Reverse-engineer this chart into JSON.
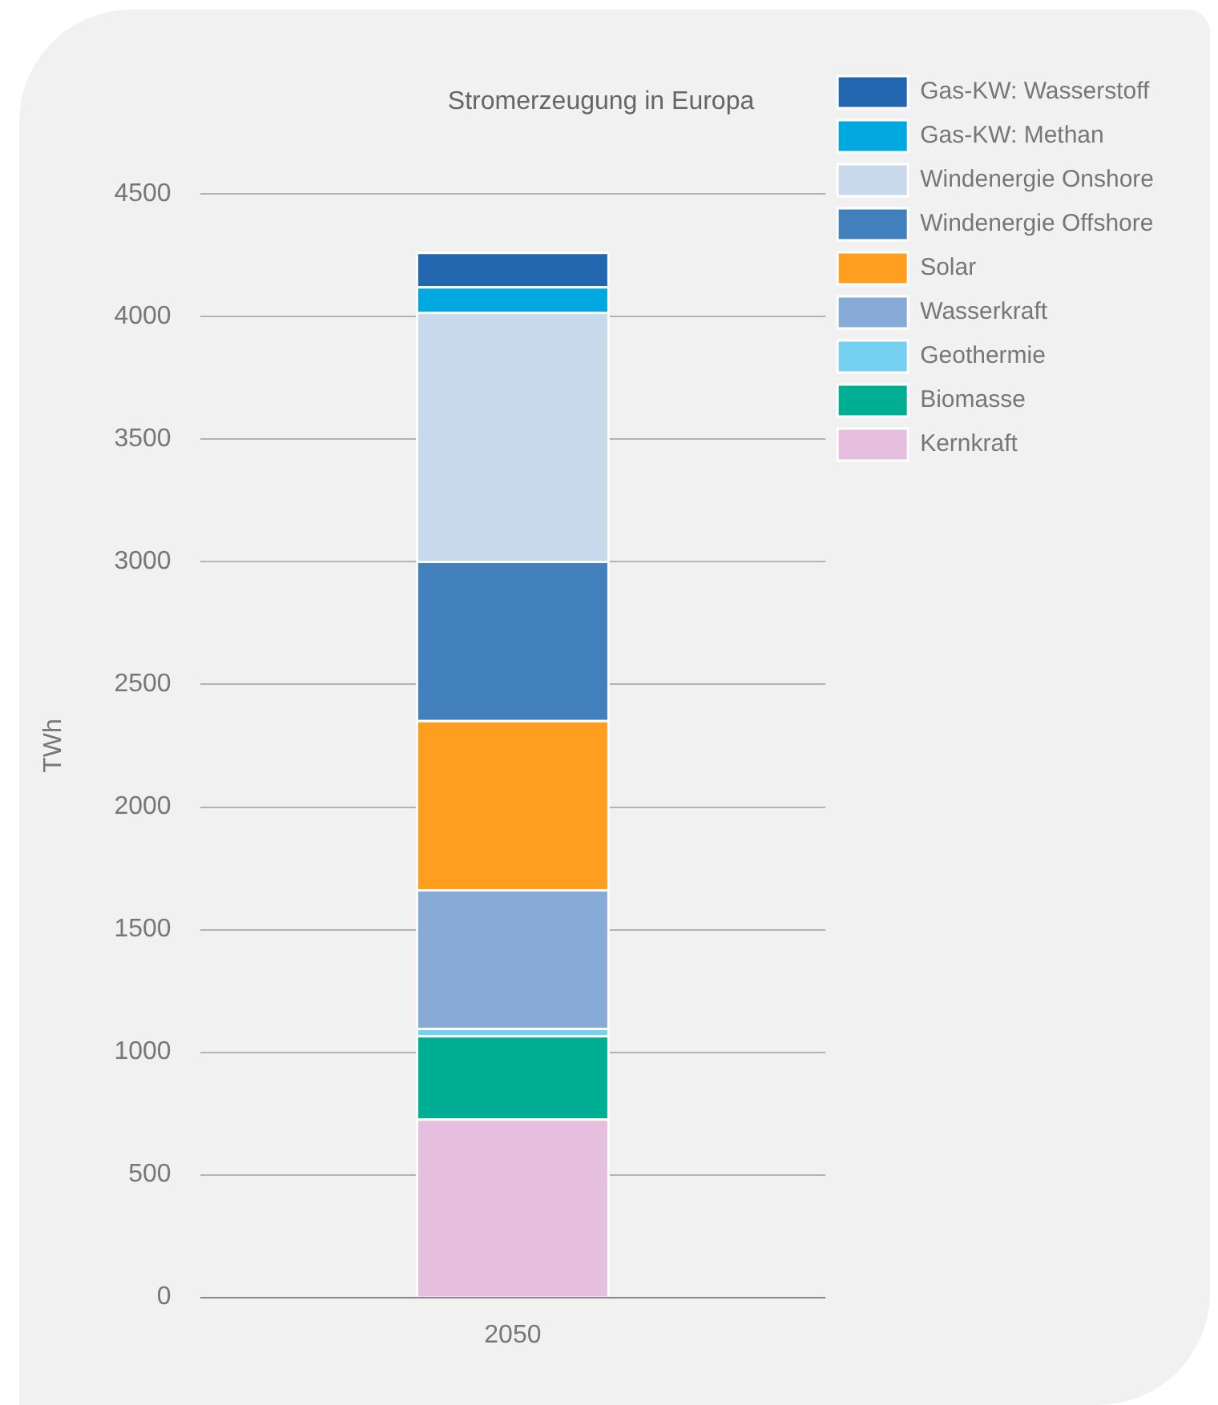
{
  "chart_data": {
    "type": "bar",
    "title": "Stromerzeugung in Europa",
    "ylabel": "TWh",
    "categories": [
      "2050"
    ],
    "stacked": true,
    "ylim": [
      0,
      4500
    ],
    "yticks": [
      0,
      500,
      1000,
      1500,
      2000,
      2500,
      3000,
      3500,
      4000,
      4500
    ],
    "grid": "y",
    "legend": "top right",
    "series": [
      {
        "name": "Kernkraft",
        "color": "#e6bfdf",
        "values": [
          730
        ]
      },
      {
        "name": "Biomasse",
        "color": "#00ae94",
        "values": [
          340
        ]
      },
      {
        "name": "Geothermie",
        "color": "#76d0ef",
        "values": [
          30
        ]
      },
      {
        "name": "Wasserkraft",
        "color": "#87abd6",
        "values": [
          565
        ]
      },
      {
        "name": "Solar",
        "color": "#ff9e1f",
        "values": [
          690
        ]
      },
      {
        "name": "Windenergie Offshore",
        "color": "#427fbd",
        "values": [
          650
        ]
      },
      {
        "name": "Windenergie Onshore",
        "color": "#c8d9eb",
        "values": [
          1015
        ]
      },
      {
        "name": "Gas-KW: Methan",
        "color": "#00a8e0",
        "values": [
          105
        ]
      },
      {
        "name": "Gas-KW: Wasserstoff",
        "color": "#2166ae",
        "values": [
          140
        ]
      }
    ]
  }
}
